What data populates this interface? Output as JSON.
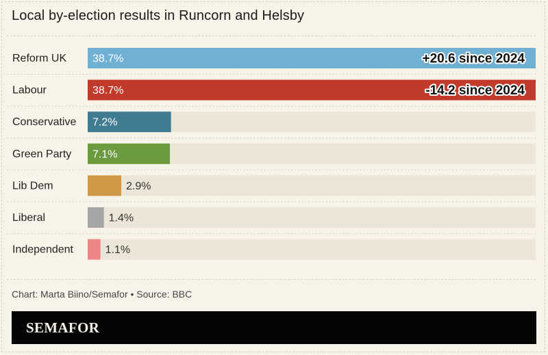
{
  "chart_data": {
    "type": "bar",
    "orientation": "horizontal",
    "title": "Local by-election results in Runcorn and Helsby",
    "categories": [
      "Reform UK",
      "Labour",
      "Conservative",
      "Green Party",
      "Lib Dem",
      "Liberal",
      "Independent"
    ],
    "values": [
      38.7,
      38.7,
      7.2,
      7.1,
      2.9,
      1.4,
      1.1
    ],
    "value_labels": [
      "38.7%",
      "38.7%",
      "7.2%",
      "7.1%",
      "2.9%",
      "1.4%",
      "1.1%"
    ],
    "colors": [
      "#6fb0d3",
      "#c23a2b",
      "#407b91",
      "#6b9a3f",
      "#cf9a47",
      "#a6a6a6",
      "#ee8585"
    ],
    "annotations": [
      {
        "category": "Reform UK",
        "text": "+20.6 since 2024"
      },
      {
        "category": "Labour",
        "text": "-14.2 since 2024"
      }
    ],
    "xlim": [
      0,
      38.7
    ],
    "grid": false,
    "legend": "none"
  },
  "source_text": "Chart: Marta Biino/Semafor • Source: BBC",
  "footer": {
    "logo": "SEMAFOR"
  },
  "colors": {
    "background": "#f7f3e8",
    "track": "#ebe6d8",
    "footer": "#050505"
  }
}
